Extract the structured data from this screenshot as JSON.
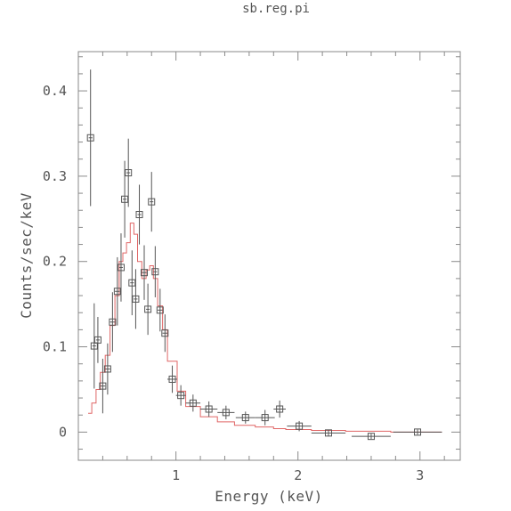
{
  "chart_data": {
    "type": "scatter",
    "title": "sb.reg.pi",
    "xlabel": "Energy (keV)",
    "ylabel": "Counts/sec/keV",
    "xlim": [
      0.2,
      3.33
    ],
    "ylim": [
      -0.033,
      0.446
    ],
    "x_ticks": [
      {
        "value": 1,
        "label": "1"
      },
      {
        "value": 2,
        "label": "2"
      },
      {
        "value": 3,
        "label": "3"
      }
    ],
    "y_ticks": [
      {
        "value": 0,
        "label": "0"
      },
      {
        "value": 0.1,
        "label": "0.1"
      },
      {
        "value": 0.2,
        "label": "0.2"
      },
      {
        "value": 0.3,
        "label": "0.3"
      },
      {
        "value": 0.4,
        "label": "0.4"
      }
    ],
    "grid": false,
    "series": [
      {
        "kind": "data",
        "marker": "boxed-cross",
        "color": "#555555",
        "points": [
          {
            "x": 0.3,
            "xerr": 0.015,
            "y": 0.345,
            "yerr": 0.08
          },
          {
            "x": 0.33,
            "xerr": 0.015,
            "y": 0.101,
            "yerr": 0.05
          },
          {
            "x": 0.36,
            "xerr": 0.015,
            "y": 0.108,
            "yerr": 0.027
          },
          {
            "x": 0.4,
            "xerr": 0.02,
            "y": 0.054,
            "yerr": 0.032
          },
          {
            "x": 0.44,
            "xerr": 0.02,
            "y": 0.074,
            "yerr": 0.03
          },
          {
            "x": 0.48,
            "xerr": 0.02,
            "y": 0.129,
            "yerr": 0.035
          },
          {
            "x": 0.52,
            "xerr": 0.02,
            "y": 0.165,
            "yerr": 0.04
          },
          {
            "x": 0.55,
            "xerr": 0.015,
            "y": 0.193,
            "yerr": 0.04
          },
          {
            "x": 0.58,
            "xerr": 0.015,
            "y": 0.273,
            "yerr": 0.045
          },
          {
            "x": 0.61,
            "xerr": 0.015,
            "y": 0.304,
            "yerr": 0.04
          },
          {
            "x": 0.64,
            "xerr": 0.015,
            "y": 0.175,
            "yerr": 0.038
          },
          {
            "x": 0.67,
            "xerr": 0.015,
            "y": 0.156,
            "yerr": 0.035
          },
          {
            "x": 0.7,
            "xerr": 0.015,
            "y": 0.255,
            "yerr": 0.035
          },
          {
            "x": 0.74,
            "xerr": 0.02,
            "y": 0.187,
            "yerr": 0.032
          },
          {
            "x": 0.77,
            "xerr": 0.015,
            "y": 0.144,
            "yerr": 0.03
          },
          {
            "x": 0.8,
            "xerr": 0.015,
            "y": 0.27,
            "yerr": 0.035
          },
          {
            "x": 0.83,
            "xerr": 0.015,
            "y": 0.188,
            "yerr": 0.03
          },
          {
            "x": 0.87,
            "xerr": 0.02,
            "y": 0.143,
            "yerr": 0.025
          },
          {
            "x": 0.91,
            "xerr": 0.02,
            "y": 0.116,
            "yerr": 0.022
          },
          {
            "x": 0.97,
            "xerr": 0.04,
            "y": 0.062,
            "yerr": 0.016
          },
          {
            "x": 1.04,
            "xerr": 0.04,
            "y": 0.043,
            "yerr": 0.012
          },
          {
            "x": 1.14,
            "xerr": 0.06,
            "y": 0.034,
            "yerr": 0.01
          },
          {
            "x": 1.27,
            "xerr": 0.07,
            "y": 0.027,
            "yerr": 0.009
          },
          {
            "x": 1.41,
            "xerr": 0.07,
            "y": 0.023,
            "yerr": 0.008
          },
          {
            "x": 1.57,
            "xerr": 0.08,
            "y": 0.017,
            "yerr": 0.007
          },
          {
            "x": 1.73,
            "xerr": 0.08,
            "y": 0.017,
            "yerr": 0.009
          },
          {
            "x": 1.85,
            "xerr": 0.05,
            "y": 0.027,
            "yerr": 0.01
          },
          {
            "x": 2.01,
            "xerr": 0.1,
            "y": 0.007,
            "yerr": 0.006
          },
          {
            "x": 2.25,
            "xerr": 0.14,
            "y": -0.001,
            "yerr": 0.004
          },
          {
            "x": 2.6,
            "xerr": 0.16,
            "y": -0.005,
            "yerr": 0.003
          },
          {
            "x": 2.98,
            "xerr": 0.2,
            "y": 0.0,
            "yerr": 0.003
          }
        ]
      },
      {
        "kind": "model",
        "style": "step",
        "color": "#e06666",
        "bins": [
          {
            "x0": 0.28,
            "x1": 0.31,
            "y": 0.022
          },
          {
            "x0": 0.31,
            "x1": 0.345,
            "y": 0.034
          },
          {
            "x0": 0.345,
            "x1": 0.38,
            "y": 0.05
          },
          {
            "x0": 0.38,
            "x1": 0.42,
            "y": 0.07
          },
          {
            "x0": 0.42,
            "x1": 0.46,
            "y": 0.09
          },
          {
            "x0": 0.46,
            "x1": 0.5,
            "y": 0.125
          },
          {
            "x0": 0.5,
            "x1": 0.535,
            "y": 0.16
          },
          {
            "x0": 0.535,
            "x1": 0.565,
            "y": 0.2
          },
          {
            "x0": 0.565,
            "x1": 0.595,
            "y": 0.21
          },
          {
            "x0": 0.595,
            "x1": 0.625,
            "y": 0.222
          },
          {
            "x0": 0.625,
            "x1": 0.655,
            "y": 0.245
          },
          {
            "x0": 0.655,
            "x1": 0.685,
            "y": 0.232
          },
          {
            "x0": 0.685,
            "x1": 0.72,
            "y": 0.2
          },
          {
            "x0": 0.72,
            "x1": 0.755,
            "y": 0.18
          },
          {
            "x0": 0.755,
            "x1": 0.785,
            "y": 0.19
          },
          {
            "x0": 0.785,
            "x1": 0.815,
            "y": 0.195
          },
          {
            "x0": 0.815,
            "x1": 0.85,
            "y": 0.18
          },
          {
            "x0": 0.85,
            "x1": 0.89,
            "y": 0.148
          },
          {
            "x0": 0.89,
            "x1": 0.93,
            "y": 0.12
          },
          {
            "x0": 0.93,
            "x1": 1.01,
            "y": 0.083
          },
          {
            "x0": 1.01,
            "x1": 1.08,
            "y": 0.048
          },
          {
            "x0": 1.08,
            "x1": 1.2,
            "y": 0.03
          },
          {
            "x0": 1.2,
            "x1": 1.34,
            "y": 0.018
          },
          {
            "x0": 1.34,
            "x1": 1.48,
            "y": 0.012
          },
          {
            "x0": 1.48,
            "x1": 1.65,
            "y": 0.008
          },
          {
            "x0": 1.65,
            "x1": 1.8,
            "y": 0.006
          },
          {
            "x0": 1.8,
            "x1": 1.9,
            "y": 0.004
          },
          {
            "x0": 1.9,
            "x1": 2.11,
            "y": 0.003
          },
          {
            "x0": 2.11,
            "x1": 2.39,
            "y": 0.002
          },
          {
            "x0": 2.39,
            "x1": 2.76,
            "y": 0.001
          },
          {
            "x0": 2.76,
            "x1": 3.18,
            "y": 0.0
          }
        ]
      }
    ]
  }
}
